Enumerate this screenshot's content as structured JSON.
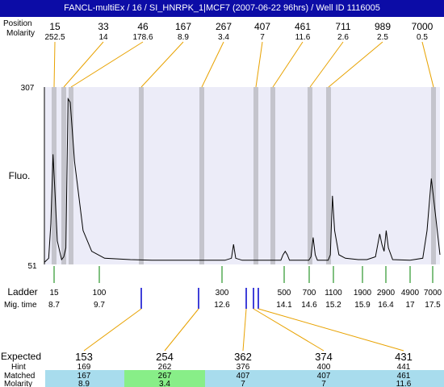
{
  "title": "FANCL-multiEx / 16 / SI_HNRPK_1|MCF7 (2007-06-22 96hrs) / Well ID 1116005",
  "colors": {
    "title_bg": "#0c0ca6",
    "plot_bg": "#ececf8",
    "peak_band": "#c4c4cc",
    "leader_line": "#e8a200",
    "ladder_tick": "#008000",
    "marker_tick": "#0000cc",
    "expected_miss": "#dd0000",
    "row_bg": "#a8dced",
    "row_match_bg": "#88ee88"
  },
  "header": {
    "row_labels": [
      "Position",
      "Molarity"
    ],
    "peaks": [
      {
        "size": "15",
        "molarity": "252.5"
      },
      {
        "size": "33",
        "molarity": "14"
      },
      {
        "size": "46",
        "molarity": "178.6"
      },
      {
        "size": "167",
        "molarity": "8.9"
      },
      {
        "size": "267",
        "molarity": "3.4"
      },
      {
        "size": "407",
        "molarity": "7"
      },
      {
        "size": "461",
        "molarity": "11.6"
      },
      {
        "size": "711",
        "molarity": "2.6"
      },
      {
        "size": "989",
        "molarity": "2.5"
      },
      {
        "size": "7000",
        "molarity": "0.5"
      }
    ]
  },
  "plot": {
    "y_label": "Fluo.",
    "y_top": "307",
    "y_bottom": "51"
  },
  "ladder": {
    "label": "Ladder",
    "time_label": "Mig. time",
    "entries": [
      {
        "size": "15",
        "time": "8.7"
      },
      {
        "size": "100",
        "time": "9.7"
      },
      {
        "size": "300",
        "time": "12.6"
      },
      {
        "size": "500",
        "time": "14.1"
      },
      {
        "size": "700",
        "time": "14.6"
      },
      {
        "size": "1100",
        "time": "15.2"
      },
      {
        "size": "1900",
        "time": "15.9"
      },
      {
        "size": "2900",
        "time": "16.4"
      },
      {
        "size": "4900",
        "time": "17"
      },
      {
        "size": "7000",
        "time": "17.5"
      }
    ]
  },
  "expected_table": {
    "labels": [
      "Expected",
      "Hint",
      "Matched",
      "Molarity"
    ],
    "columns": [
      {
        "expected": "153",
        "hint": "169",
        "matched": "167",
        "molarity": "8.9",
        "missed": true
      },
      {
        "expected": "254",
        "hint": "262",
        "matched": "267",
        "molarity": "3.4",
        "missed": false
      },
      {
        "expected": "362",
        "hint": "376",
        "matched": "407",
        "molarity": "7",
        "missed": false
      },
      {
        "expected": "374",
        "hint": "400",
        "matched": "407",
        "molarity": "7",
        "missed": false
      },
      {
        "expected": "431",
        "hint": "441",
        "matched": "461",
        "molarity": "11.6",
        "missed": true
      }
    ]
  },
  "chart_data": {
    "type": "line",
    "y_label": "Fluo.",
    "ylim": [
      51,
      307
    ],
    "x_unit": "migration time",
    "xlim": [
      8.5,
      17.7
    ],
    "series": [
      {
        "points": [
          [
            8.5,
            54
          ],
          [
            8.6,
            60
          ],
          [
            8.65,
            110
          ],
          [
            8.7,
            210
          ],
          [
            8.75,
            150
          ],
          [
            8.8,
            85
          ],
          [
            8.9,
            58
          ],
          [
            8.95,
            62
          ],
          [
            9.0,
            75
          ],
          [
            9.05,
            290
          ],
          [
            9.1,
            285
          ],
          [
            9.2,
            200
          ],
          [
            9.4,
            100
          ],
          [
            9.6,
            70
          ],
          [
            9.9,
            60
          ],
          [
            10.5,
            58
          ],
          [
            11.0,
            57
          ],
          [
            11.5,
            57
          ],
          [
            12.0,
            57
          ],
          [
            12.7,
            57
          ],
          [
            12.85,
            60
          ],
          [
            12.9,
            80
          ],
          [
            12.95,
            60
          ],
          [
            13.1,
            57
          ],
          [
            13.9,
            57
          ],
          [
            14.0,
            57
          ],
          [
            14.05,
            65
          ],
          [
            14.1,
            70
          ],
          [
            14.15,
            65
          ],
          [
            14.2,
            57
          ],
          [
            14.65,
            57
          ],
          [
            14.7,
            62
          ],
          [
            14.75,
            90
          ],
          [
            14.8,
            65
          ],
          [
            14.85,
            57
          ],
          [
            15.1,
            57
          ],
          [
            15.15,
            65
          ],
          [
            15.2,
            150
          ],
          [
            15.25,
            100
          ],
          [
            15.35,
            65
          ],
          [
            15.5,
            60
          ],
          [
            15.8,
            58
          ],
          [
            16.0,
            58
          ],
          [
            16.2,
            62
          ],
          [
            16.3,
            95
          ],
          [
            16.35,
            80
          ],
          [
            16.4,
            70
          ],
          [
            16.45,
            100
          ],
          [
            16.5,
            75
          ],
          [
            16.6,
            58
          ],
          [
            17.0,
            57
          ],
          [
            17.3,
            60
          ],
          [
            17.4,
            100
          ],
          [
            17.5,
            175
          ],
          [
            17.6,
            120
          ],
          [
            17.7,
            65
          ]
        ]
      }
    ]
  }
}
